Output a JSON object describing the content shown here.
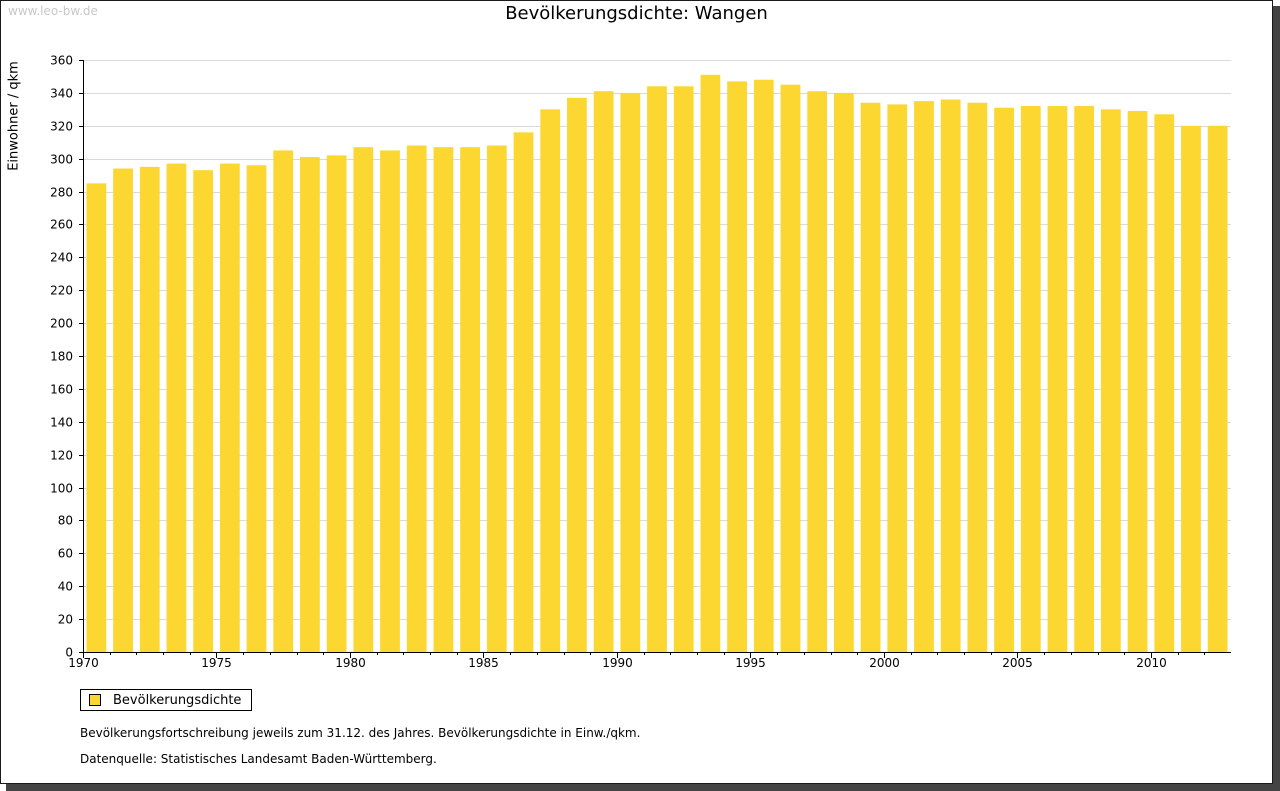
{
  "watermark": "www.leo-bw.de",
  "colors": {
    "bar": "#fcd631",
    "grid": "#d9d9d9",
    "axis": "#000000",
    "shadow": "#444444"
  },
  "legend": {
    "label": "Bevölkerungsdichte"
  },
  "notes": [
    "Bevölkerungsfortschreibung jeweils zum 31.12. des Jahres. Bevölkerungsdichte in Einw./qkm.",
    "Datenquelle: Statistisches Landesamt Baden-Württemberg."
  ],
  "chart_data": {
    "type": "bar",
    "title": "Bevölkerungsdichte: Wangen",
    "xlabel": "",
    "ylabel": "Einwohner / qkm",
    "ylim": [
      0,
      360
    ],
    "yticks": [
      0,
      20,
      40,
      60,
      80,
      100,
      120,
      140,
      160,
      180,
      200,
      220,
      240,
      260,
      280,
      300,
      320,
      340,
      360
    ],
    "xtick_labels": [
      "1970",
      "1975",
      "1980",
      "1985",
      "1990",
      "1995",
      "2000",
      "2005",
      "2010"
    ],
    "grid": true,
    "legend_position": "bottom-left",
    "categories": [
      1970,
      1971,
      1972,
      1973,
      1974,
      1975,
      1976,
      1977,
      1978,
      1979,
      1980,
      1981,
      1982,
      1983,
      1984,
      1985,
      1986,
      1987,
      1988,
      1989,
      1990,
      1991,
      1992,
      1993,
      1994,
      1995,
      1996,
      1997,
      1998,
      1999,
      2000,
      2001,
      2002,
      2003,
      2004,
      2005,
      2006,
      2007,
      2008,
      2009,
      2010,
      2011,
      2012
    ],
    "series": [
      {
        "name": "Bevölkerungsdichte",
        "values": [
          285,
          294,
          295,
          297,
          293,
          297,
          296,
          305,
          301,
          302,
          307,
          305,
          308,
          307,
          307,
          308,
          316,
          330,
          337,
          341,
          340,
          344,
          344,
          351,
          347,
          348,
          345,
          341,
          340,
          334,
          333,
          335,
          336,
          334,
          331,
          332,
          332,
          332,
          330,
          329,
          327,
          320,
          320
        ]
      }
    ]
  }
}
